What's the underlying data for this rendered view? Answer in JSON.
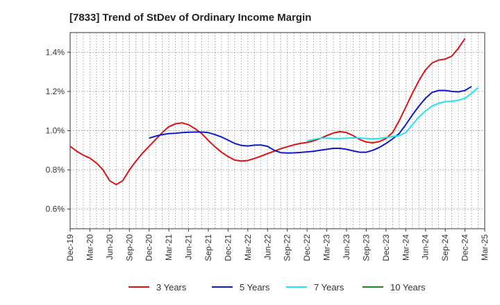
{
  "chart_data": {
    "type": "line",
    "title": "[7833]  Trend of StDev of Ordinary Income Margin",
    "xlabel": "",
    "ylabel": "",
    "ylim": [
      0.5,
      1.5
    ],
    "grid": true,
    "legend_position": "bottom",
    "y_ticks": [
      {
        "value": 0.6,
        "label": "0.6%"
      },
      {
        "value": 0.8,
        "label": "0.8%"
      },
      {
        "value": 1.0,
        "label": "1.0%"
      },
      {
        "value": 1.2,
        "label": "1.2%"
      },
      {
        "value": 1.4,
        "label": "1.4%"
      }
    ],
    "x_ticks": [
      {
        "index": 0,
        "label": "Dec-19"
      },
      {
        "index": 3,
        "label": "Mar-20"
      },
      {
        "index": 6,
        "label": "Jun-20"
      },
      {
        "index": 9,
        "label": "Sep-20"
      },
      {
        "index": 12,
        "label": "Dec-20"
      },
      {
        "index": 15,
        "label": "Mar-21"
      },
      {
        "index": 18,
        "label": "Jun-21"
      },
      {
        "index": 21,
        "label": "Sep-21"
      },
      {
        "index": 24,
        "label": "Dec-21"
      },
      {
        "index": 27,
        "label": "Mar-22"
      },
      {
        "index": 30,
        "label": "Jun-22"
      },
      {
        "index": 33,
        "label": "Sep-22"
      },
      {
        "index": 36,
        "label": "Dec-22"
      },
      {
        "index": 39,
        "label": "Mar-23"
      },
      {
        "index": 42,
        "label": "Jun-23"
      },
      {
        "index": 45,
        "label": "Sep-23"
      },
      {
        "index": 48,
        "label": "Dec-23"
      },
      {
        "index": 51,
        "label": "Mar-24"
      },
      {
        "index": 54,
        "label": "Jun-24"
      },
      {
        "index": 57,
        "label": "Sep-24"
      },
      {
        "index": 60,
        "label": "Dec-24"
      },
      {
        "index": 63,
        "label": "Mar-25"
      }
    ],
    "x_count": 64,
    "series": [
      {
        "name": "3 Years",
        "color": "#dd1111",
        "start": 0,
        "values": [
          0.92,
          0.895,
          0.875,
          0.86,
          0.835,
          0.8,
          0.745,
          0.725,
          0.745,
          0.8,
          0.845,
          0.885,
          0.92,
          0.955,
          0.99,
          1.02,
          1.035,
          1.04,
          1.03,
          1.01,
          0.985,
          0.95,
          0.918,
          0.89,
          0.868,
          0.85,
          0.845,
          0.848,
          0.858,
          0.87,
          0.883,
          0.895,
          0.908,
          0.918,
          0.928,
          0.935,
          0.94,
          0.948,
          0.96,
          0.975,
          0.988,
          0.995,
          0.99,
          0.975,
          0.955,
          0.942,
          0.938,
          0.945,
          0.96,
          0.99,
          1.05,
          1.12,
          1.19,
          1.255,
          1.31,
          1.345,
          1.36,
          1.365,
          1.38,
          1.42,
          1.47
        ]
      },
      {
        "name": "5 Years",
        "color": "#0a1acc",
        "start": 12,
        "values": [
          0.962,
          0.972,
          0.98,
          0.985,
          0.987,
          0.99,
          0.992,
          0.993,
          0.993,
          0.99,
          0.98,
          0.968,
          0.952,
          0.935,
          0.925,
          0.922,
          0.926,
          0.927,
          0.92,
          0.9,
          0.888,
          0.886,
          0.887,
          0.889,
          0.892,
          0.895,
          0.9,
          0.905,
          0.91,
          0.91,
          0.905,
          0.897,
          0.89,
          0.89,
          0.9,
          0.915,
          0.935,
          0.958,
          0.985,
          1.03,
          1.08,
          1.125,
          1.165,
          1.195,
          1.205,
          1.205,
          1.2,
          1.198,
          1.205,
          1.225
        ]
      },
      {
        "name": "7 Years",
        "color": "#1ee6ee",
        "start": 36,
        "values": [
          0.948,
          0.955,
          0.962,
          0.962,
          0.96,
          0.96,
          0.962,
          0.963,
          0.963,
          0.96,
          0.958,
          0.96,
          0.965,
          0.97,
          0.975,
          0.99,
          1.03,
          1.07,
          1.1,
          1.125,
          1.14,
          1.148,
          1.15,
          1.155,
          1.165,
          1.19,
          1.22
        ]
      },
      {
        "name": "10 Years",
        "color": "#1a8a1a",
        "start": 0,
        "values": []
      }
    ]
  }
}
